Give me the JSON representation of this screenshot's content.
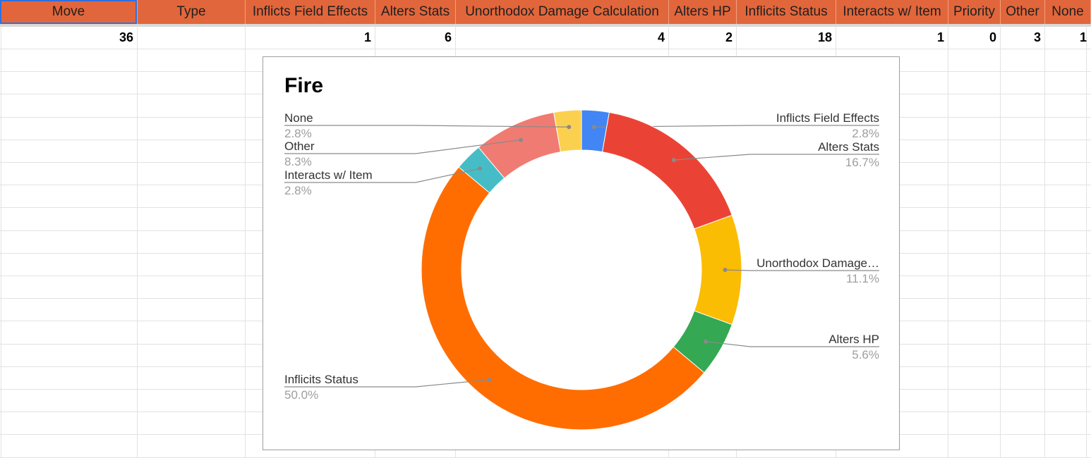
{
  "sheet": {
    "headers": [
      "Move",
      "Type",
      "Inflicts Field Effects",
      "Alters Stats",
      "Unorthodox Damage Calculation",
      "Alters HP",
      "Inflicits Status",
      "Interacts w/ Item",
      "Priority",
      "Other",
      "None"
    ],
    "values": [
      "36",
      "",
      "1",
      "6",
      "4",
      "2",
      "18",
      "1",
      "0",
      "3",
      "1"
    ],
    "header_color": "#e2663b"
  },
  "chart_data": {
    "type": "pie",
    "donut": true,
    "title": "Fire",
    "slices": [
      {
        "label": "Inflicts Field Effects",
        "value": 1,
        "percent": "2.8%",
        "color": "#4285f4"
      },
      {
        "label": "Alters Stats",
        "value": 6,
        "percent": "16.7%",
        "color": "#ea4335"
      },
      {
        "label": "Unorthodox Damage…",
        "value": 4,
        "percent": "11.1%",
        "color": "#fbbc04"
      },
      {
        "label": "Alters HP",
        "value": 2,
        "percent": "5.6%",
        "color": "#34a853"
      },
      {
        "label": "Inflicits Status",
        "value": 18,
        "percent": "50.0%",
        "color": "#ff6d01"
      },
      {
        "label": "Interacts w/ Item",
        "value": 1,
        "percent": "2.8%",
        "color": "#46bdc6"
      },
      {
        "label": "Other",
        "value": 3,
        "percent": "8.3%",
        "color": "#f07b72"
      },
      {
        "label": "None",
        "value": 1,
        "percent": "2.8%",
        "color": "#fcd04f"
      }
    ]
  }
}
